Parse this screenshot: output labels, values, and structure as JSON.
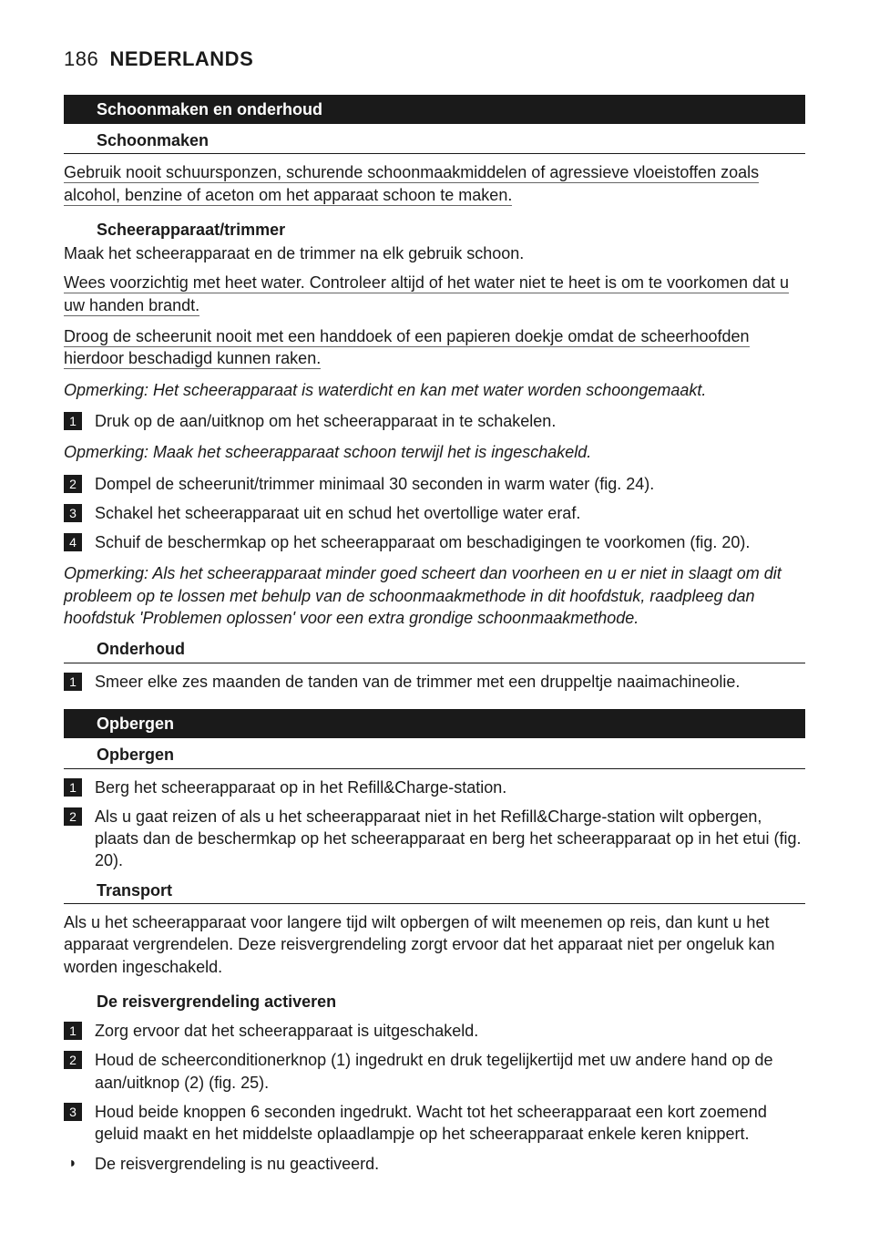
{
  "header": {
    "page_number": "186",
    "language": "NEDERLANDS"
  },
  "sec1": {
    "bar": "Schoonmaken en onderhoud",
    "h2": "Schoonmaken",
    "warn1": "Gebruik nooit schuursponzen, schurende schoonmaakmiddelen of agressieve vloeistoffen zoals alcohol, benzine of aceton om het apparaat schoon te maken.",
    "h3": "Scheerapparaat/trimmer",
    "p1": "Maak het scheerapparaat en de trimmer na elk gebruik schoon.",
    "warn2": "Wees voorzichtig met heet water. Controleer altijd of het water niet te heet is om te voorkomen dat u uw handen brandt.",
    "warn3": "Droog de scheerunit nooit met een handdoek of een papieren doekje omdat de scheerhoofden hierdoor beschadigd kunnen raken.",
    "note1": "Opmerking: Het scheerapparaat is waterdicht en kan met water worden schoongemaakt.",
    "s1": "Druk op de aan/uitknop om het scheerapparaat in te schakelen.",
    "note2": "Opmerking: Maak het scheerapparaat schoon terwijl het is ingeschakeld.",
    "s2": "Dompel de scheerunit/trimmer minimaal 30 seconden in warm water (fig. 24).",
    "s3": "Schakel het scheerapparaat uit en schud het overtollige water eraf.",
    "s4": "Schuif de beschermkap op het scheerapparaat om beschadigingen te voorkomen (fig. 20).",
    "note3": "Opmerking: Als het scheerapparaat minder goed scheert dan voorheen en u er niet in slaagt om dit probleem op te lossen met behulp van de schoonmaakmethode in dit hoofdstuk, raadpleeg dan hoofdstuk 'Problemen oplossen' voor een extra grondige schoonmaakmethode.",
    "h2b": "Onderhoud",
    "m1": "Smeer elke zes maanden de tanden van de trimmer met een druppeltje naaimachineolie."
  },
  "sec2": {
    "bar": "Opbergen",
    "h2": "Opbergen",
    "s1": "Berg het scheerapparaat op in het Refill&Charge-station.",
    "s2": "Als u gaat reizen of als u het scheerapparaat niet in het Refill&Charge-station wilt opbergen, plaats dan de beschermkap op het scheerapparaat en berg het scheerapparaat op in het etui (fig. 20).",
    "h2b": "Transport",
    "p1": "Als u het scheerapparaat voor langere tijd wilt opbergen of wilt meenemen op reis, dan kunt u het apparaat vergrendelen. Deze reisvergrendeling zorgt ervoor dat het apparaat niet per ongeluk kan worden ingeschakeld.",
    "h3": "De reisvergrendeling activeren",
    "t1": "Zorg ervoor dat het scheerapparaat is uitgeschakeld.",
    "t2": "Houd de scheerconditionerknop (1) ingedrukt en druk tegelijkertijd met uw andere hand op de aan/uitknop (2) (fig. 25).",
    "t3": "Houd beide knoppen 6 seconden ingedrukt. Wacht tot het scheerapparaat een kort zoemend geluid maakt en het middelste oplaadlampje op het scheerapparaat enkele keren knippert.",
    "b1": "De reisvergrendeling is nu geactiveerd."
  },
  "nums": {
    "n1": "1",
    "n2": "2",
    "n3": "3",
    "n4": "4"
  },
  "bullet": "◗"
}
